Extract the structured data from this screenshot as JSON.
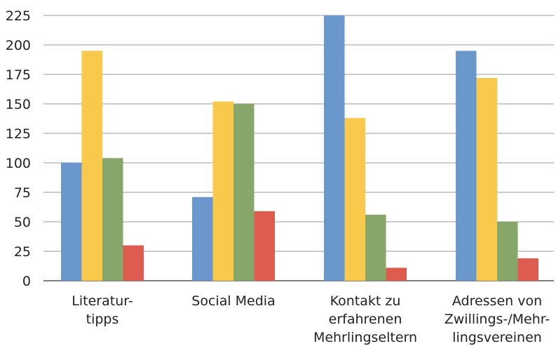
{
  "chart_data": {
    "type": "bar",
    "categories": [
      [
        "Literatur-",
        "tipps"
      ],
      [
        "Social Media"
      ],
      [
        "Kontakt zu",
        "erfahrenen",
        "Mehrlingseltern"
      ],
      [
        "Adressen von",
        "Zwillings-/Mehr-",
        "lingsvereinen"
      ]
    ],
    "series": [
      {
        "color": "#6a97cc",
        "values": [
          100,
          71,
          225,
          195
        ]
      },
      {
        "color": "#f8c94b",
        "values": [
          195,
          152,
          138,
          172
        ]
      },
      {
        "color": "#86a66a",
        "values": [
          104,
          150,
          56,
          50
        ]
      },
      {
        "color": "#de5b4f",
        "values": [
          30,
          59,
          11,
          19
        ]
      }
    ],
    "ylim": [
      0,
      225
    ],
    "yticks": [
      0,
      25,
      50,
      75,
      100,
      125,
      150,
      175,
      200,
      225
    ],
    "grid": true,
    "gridColor": "#9a9a9a",
    "axisColor": "#555555",
    "legend": "none"
  }
}
